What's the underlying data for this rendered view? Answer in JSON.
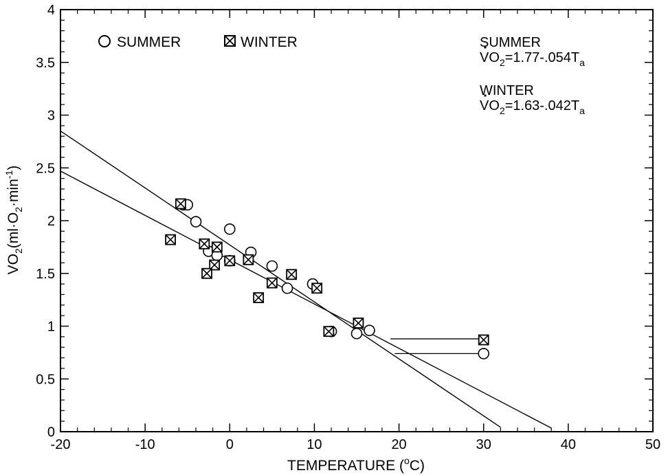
{
  "chart_data": {
    "type": "scatter",
    "title": "",
    "xlabel": "TEMPERATURE (°C)",
    "ylabel": "VO2(ml·O2·min-1)",
    "xlim": [
      -20,
      50
    ],
    "ylim": [
      0,
      4
    ],
    "x_ticks": [
      -20,
      -10,
      0,
      10,
      20,
      30,
      40,
      50
    ],
    "y_ticks": [
      0,
      0.5,
      1,
      1.5,
      2,
      2.5,
      3,
      3.5,
      4
    ],
    "grid": false,
    "legend": "top-left",
    "series": [
      {
        "name": "SUMMER",
        "marker": "open-circle",
        "points": [
          {
            "x": -5.5,
            "y": 2.15
          },
          {
            "x": -5,
            "y": 2.15
          },
          {
            "x": -4,
            "y": 1.99
          },
          {
            "x": 0,
            "y": 1.92
          },
          {
            "x": 2.5,
            "y": 1.7
          },
          {
            "x": -2.5,
            "y": 1.71
          },
          {
            "x": -1.5,
            "y": 1.67
          },
          {
            "x": 0,
            "y": 1.62
          },
          {
            "x": 5,
            "y": 1.57
          },
          {
            "x": 6.8,
            "y": 1.36
          },
          {
            "x": 9.8,
            "y": 1.4
          },
          {
            "x": 12,
            "y": 0.95
          },
          {
            "x": 15,
            "y": 0.93
          },
          {
            "x": 16.5,
            "y": 0.96
          },
          {
            "x": 30,
            "y": 0.74
          }
        ],
        "regression": {
          "intercept": 1.77,
          "slope": -0.054,
          "x_end": 32
        }
      },
      {
        "name": "WINTER",
        "marker": "boxed-x",
        "points": [
          {
            "x": -5.8,
            "y": 2.16
          },
          {
            "x": -7,
            "y": 1.82
          },
          {
            "x": -3,
            "y": 1.78
          },
          {
            "x": -1.5,
            "y": 1.75
          },
          {
            "x": -1.8,
            "y": 1.58
          },
          {
            "x": -2.7,
            "y": 1.5
          },
          {
            "x": 0,
            "y": 1.62
          },
          {
            "x": 2.2,
            "y": 1.63
          },
          {
            "x": 5,
            "y": 1.41
          },
          {
            "x": 7.3,
            "y": 1.49
          },
          {
            "x": 3.4,
            "y": 1.27
          },
          {
            "x": 10.3,
            "y": 1.36
          },
          {
            "x": 11.7,
            "y": 0.95
          },
          {
            "x": 15.2,
            "y": 1.03
          },
          {
            "x": 30,
            "y": 0.87
          }
        ],
        "regression": {
          "intercept": 1.63,
          "slope": -0.042,
          "x_end": 38
        }
      }
    ],
    "connectors": [
      {
        "series": "WINTER",
        "from": [
          19,
          0.88
        ],
        "to": [
          30,
          0.88
        ]
      },
      {
        "series": "SUMMER",
        "from": [
          19.5,
          0.74
        ],
        "to": [
          30,
          0.74
        ]
      }
    ],
    "legend_entries": [
      {
        "series": "SUMMER",
        "label": "SUMMER"
      },
      {
        "series": "WINTER",
        "label": "WINTER"
      }
    ],
    "annotations": [
      {
        "label": "SUMMER",
        "lhs": "VO",
        "sub1": "2",
        "rhs": "=1.77-.054T",
        "sub2": "a"
      },
      {
        "label": "WINTER",
        "lhs": "VO",
        "sub1": "2",
        "rhs": "=1.63-.042T",
        "sub2": "a"
      }
    ],
    "axis_text": {
      "xlabel_main": "TEMPERATURE (",
      "xlabel_sup": "o",
      "xlabel_unit": "C)",
      "ylabel_base": "VO",
      "ylabel_s1": "2",
      "ylabel_mid": "(ml·O",
      "ylabel_s2": "2",
      "ylabel_mid2": "·min",
      "ylabel_sup": "-1",
      "ylabel_end": ")"
    },
    "colors": {
      "ink": "#000000",
      "background": "#ffffff"
    }
  }
}
